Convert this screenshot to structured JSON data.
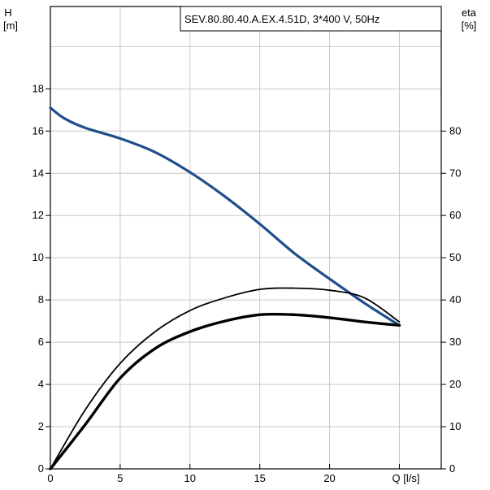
{
  "chart_data": {
    "type": "line",
    "title": "SEV.80.80.40.A.EX.4.51D, 3*400 V, 50Hz",
    "left_axis": {
      "label_line1": "H",
      "label_line2": "[m]",
      "range": [
        0,
        21.9
      ],
      "ticks": [
        0,
        2,
        4,
        6,
        8,
        10,
        12,
        14,
        16,
        18
      ],
      "tick_labels": [
        "0",
        "2",
        "4",
        "6",
        "8",
        "10",
        "12",
        "14",
        "16",
        "18"
      ]
    },
    "right_axis": {
      "label_line1": "eta",
      "label_line2": "[%]",
      "range": [
        0,
        109.5
      ],
      "ticks": [
        0,
        10,
        20,
        30,
        40,
        50,
        60,
        70,
        80
      ],
      "tick_labels": [
        "0",
        "10",
        "20",
        "30",
        "40",
        "50",
        "60",
        "70",
        "80"
      ]
    },
    "x_axis": {
      "label": "Q [l/s]",
      "range": [
        0,
        28
      ],
      "ticks": [
        0,
        5,
        10,
        15,
        20,
        25
      ],
      "tick_labels": [
        "0",
        "5",
        "10",
        "15",
        "20",
        "Q [l/s]"
      ]
    },
    "grid": true,
    "colors": {
      "head_curve": "#1f4e8c",
      "eta_curves": "#000000",
      "grid": "#c8c8c8"
    },
    "series": [
      {
        "axis": "left",
        "x": [
          0,
          1,
          2.5,
          5,
          7.5,
          10,
          12.5,
          15,
          17.5,
          20,
          22.5,
          25
        ],
        "y": [
          17.1,
          16.6,
          16.15,
          15.65,
          15.0,
          14.05,
          12.9,
          11.6,
          10.2,
          9.0,
          7.85,
          6.8
        ]
      },
      {
        "axis": "right",
        "x": [
          0,
          2.5,
          5,
          7.5,
          10,
          12.5,
          15,
          17.5,
          20,
          22.5,
          25
        ],
        "y": [
          0,
          14,
          25,
          32.5,
          37.5,
          40.5,
          42.5,
          42.8,
          42.3,
          40.5,
          34.8
        ]
      },
      {
        "axis": "right",
        "x": [
          0,
          2.5,
          5,
          7.5,
          10,
          12.5,
          15,
          17.5,
          20,
          22.5,
          25
        ],
        "y": [
          0,
          10.5,
          21.5,
          28.5,
          32.5,
          35,
          36.5,
          36.5,
          35.8,
          34.8,
          34
        ]
      }
    ]
  }
}
